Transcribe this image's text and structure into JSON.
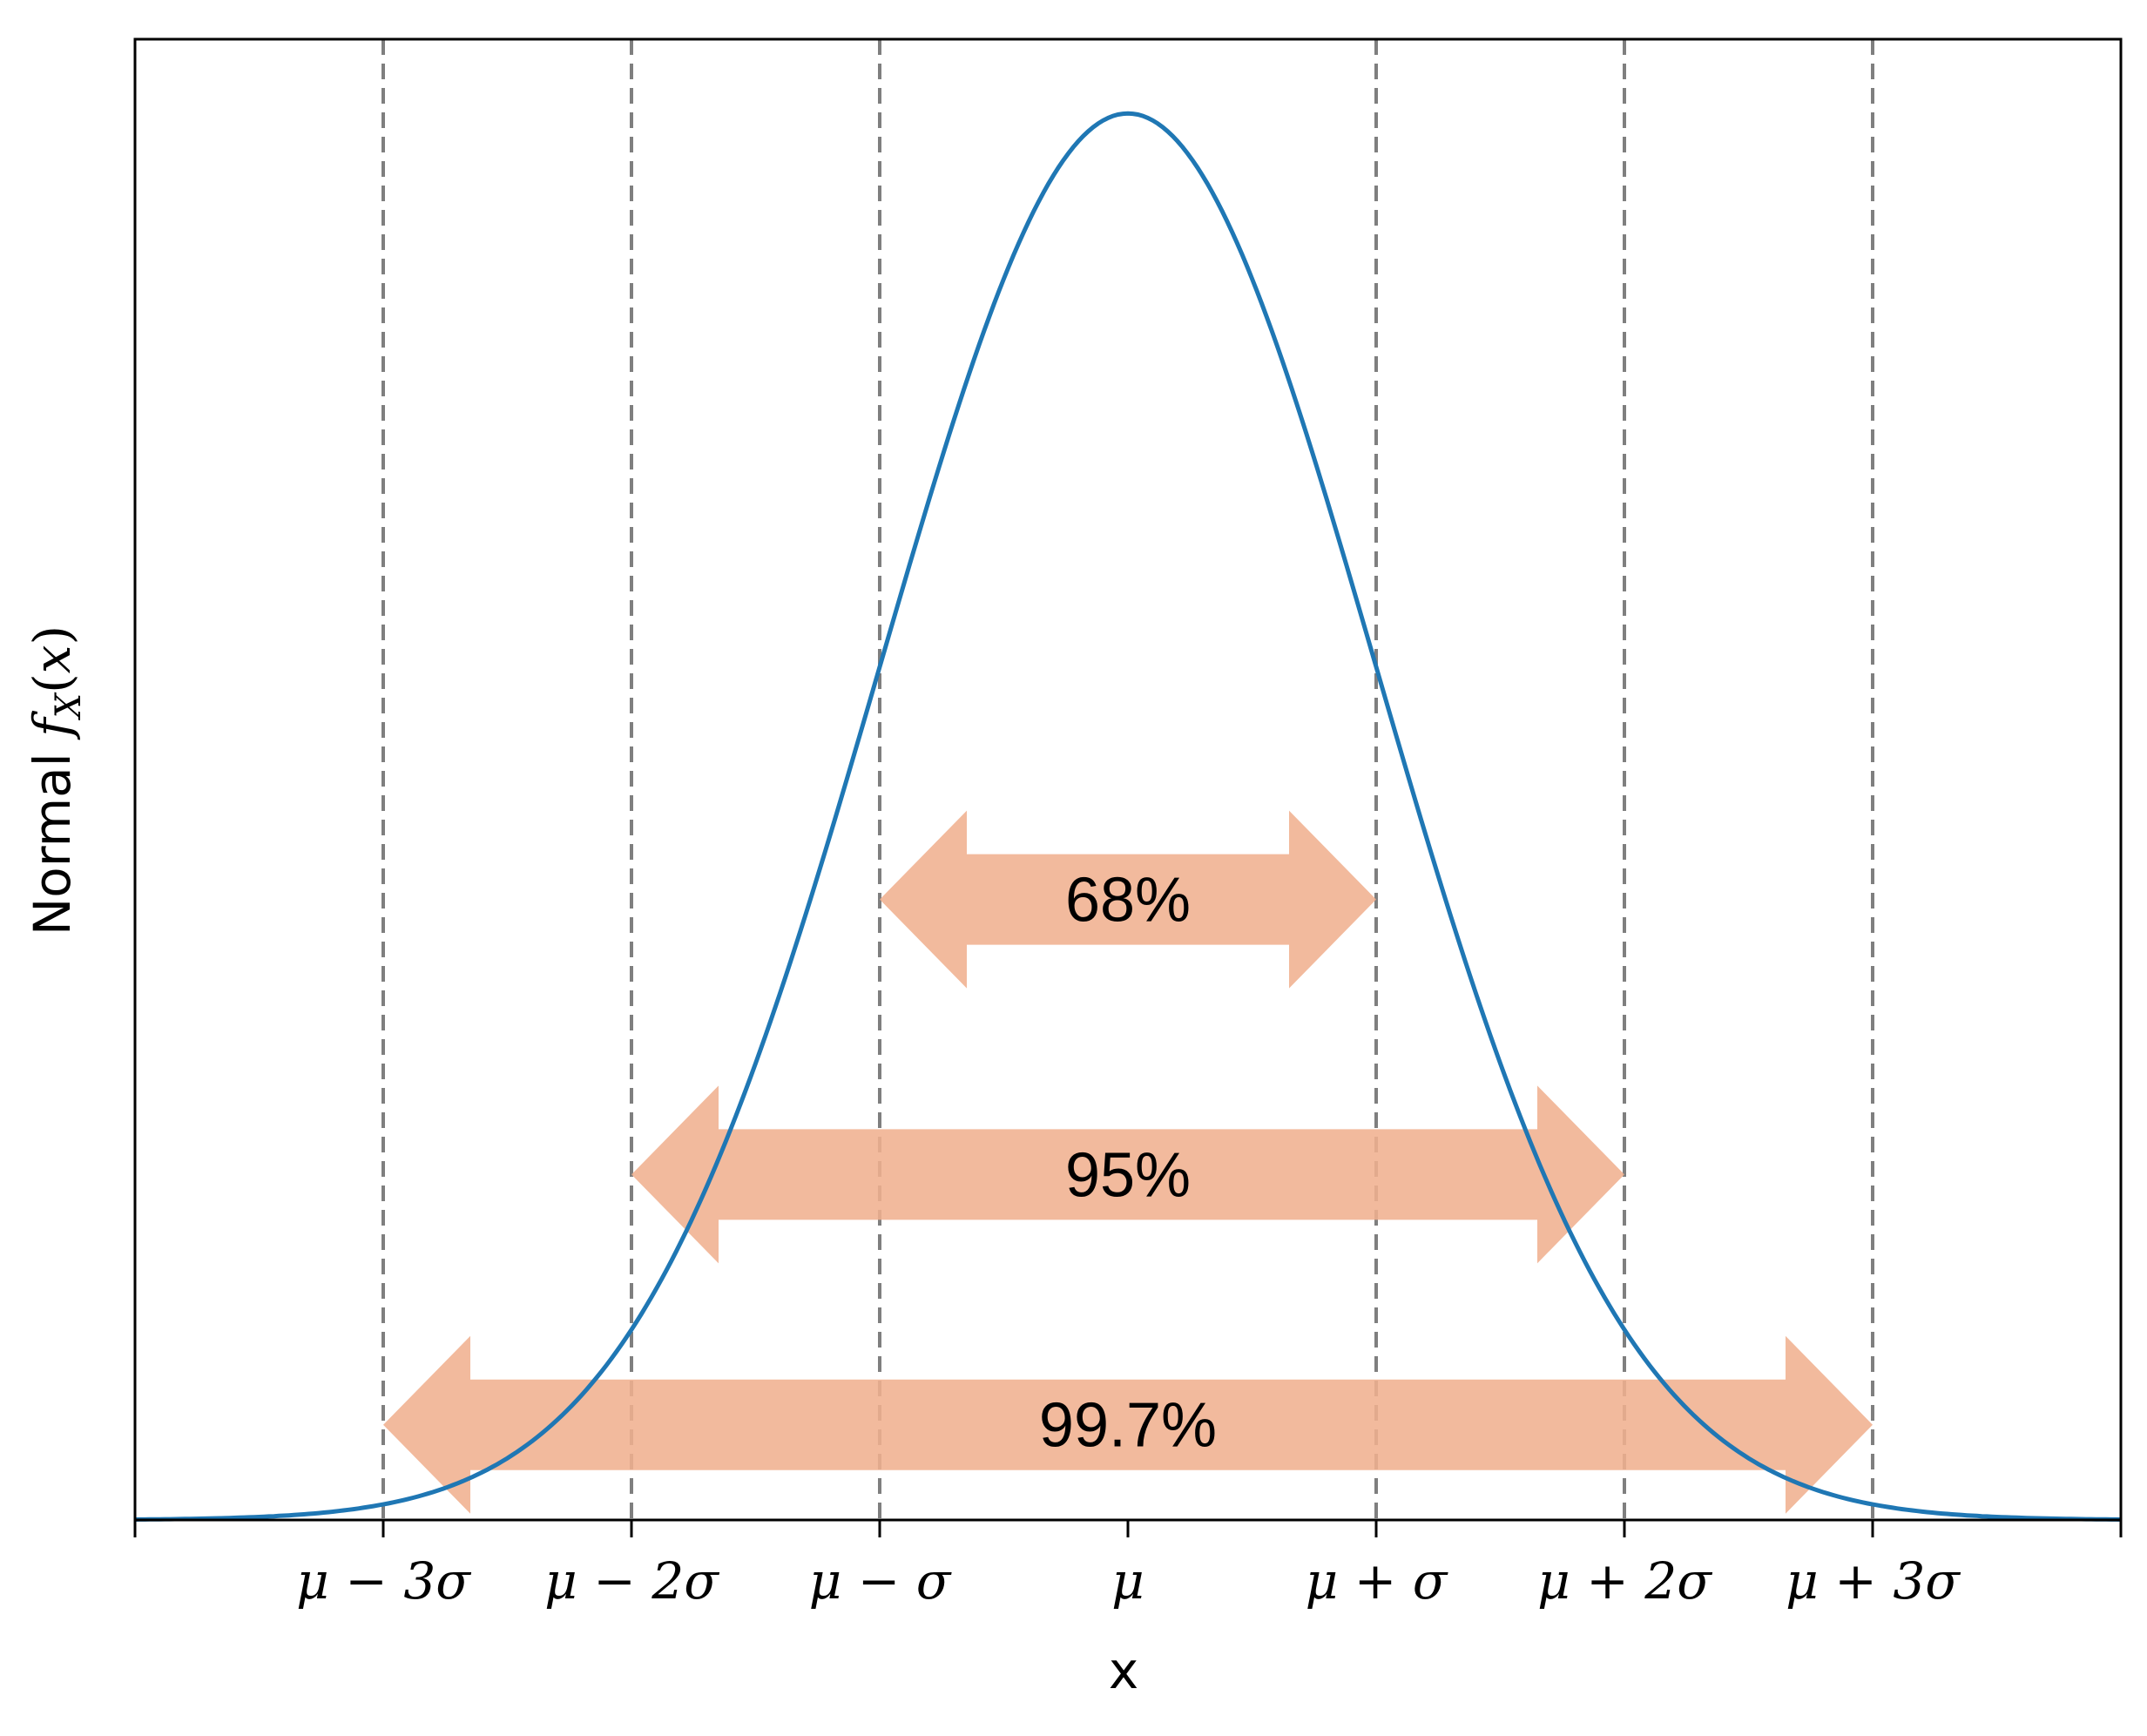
{
  "chart_data": {
    "type": "line",
    "xlabel": "x",
    "ylabel": "Normal f_X(x)",
    "xlim": [
      -4,
      4
    ],
    "ylim": [
      0,
      0.42
    ],
    "grid": false,
    "series": [
      {
        "values": "standard normal probability density curve",
        "mean": 0,
        "std": 1
      }
    ],
    "ticks": [
      {
        "value": -3,
        "label": "μ − 3σ"
      },
      {
        "value": -2,
        "label": "μ − 2σ"
      },
      {
        "value": -1,
        "label": "μ − σ"
      },
      {
        "value": 0,
        "label": "μ"
      },
      {
        "value": 1,
        "label": "μ + σ"
      },
      {
        "value": 2,
        "label": "μ + 2σ"
      },
      {
        "value": 3,
        "label": "μ + 3σ"
      }
    ],
    "vlines": [
      -3,
      -2,
      -1,
      1,
      2,
      3
    ],
    "ranges": [
      {
        "from": -1,
        "to": 1,
        "label": "68%",
        "y": 0.176
      },
      {
        "from": -2,
        "to": 2,
        "label": "95%",
        "y": 0.098
      },
      {
        "from": -3,
        "to": 3,
        "label": "99.7%",
        "y": 0.027
      }
    ],
    "colors": {
      "curve": "#1f77b4",
      "vline": "#7f7f7f",
      "arrow": "#f0b090",
      "frame": "#000000"
    }
  }
}
